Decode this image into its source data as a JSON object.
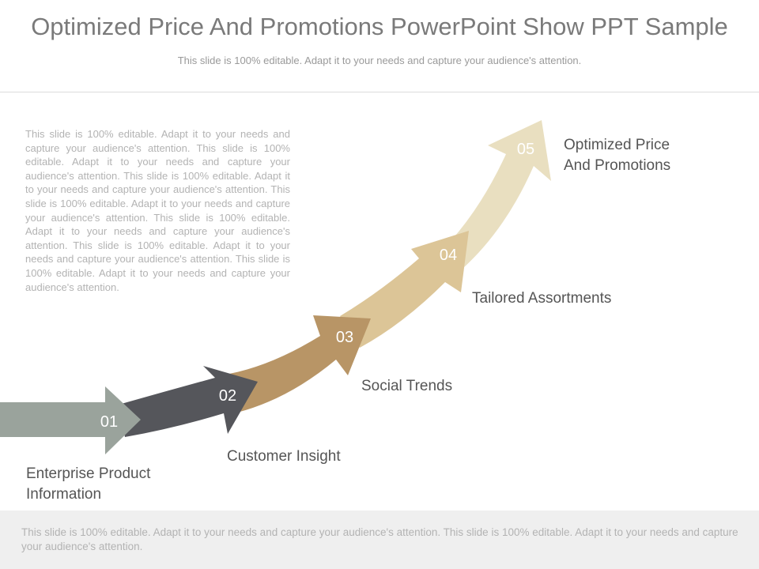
{
  "header": {
    "title": "Optimized Price And Promotions PowerPoint Show PPT Sample",
    "subtitle": "This slide is 100% editable. Adapt it to your needs and capture your audience's attention."
  },
  "body_text": "This slide is 100% editable. Adapt it to your needs and capture your audience's attention. This slide is 100% editable. Adapt it to your needs and capture your audience's attention. This slide is 100% editable. Adapt it to your needs and capture your audience's attention. This slide is 100% editable. Adapt it to your needs and capture your audience's attention. This slide is 100% editable. Adapt it to your needs and capture your audience's attention. This slide is 100% editable. Adapt it to your needs and capture your audience's attention. This slide is 100% editable. Adapt it to your needs and capture your audience's attention.",
  "steps": [
    {
      "number": "01",
      "label": "Enterprise Product Information",
      "color": "#9aa39c"
    },
    {
      "number": "02",
      "label": "Customer Insight",
      "color": "#55565b"
    },
    {
      "number": "03",
      "label": "Social Trends",
      "color": "#b89566"
    },
    {
      "number": "04",
      "label": "Tailored Assortments",
      "color": "#dcc597"
    },
    {
      "number": "05",
      "label": "Optimized Price And Promotions",
      "color": "#e9dfc0"
    }
  ],
  "footer": {
    "text": "This slide is 100% editable. Adapt it to your needs and capture your audience's attention. This slide is 100% editable. Adapt it to your needs and capture your audience's attention."
  }
}
